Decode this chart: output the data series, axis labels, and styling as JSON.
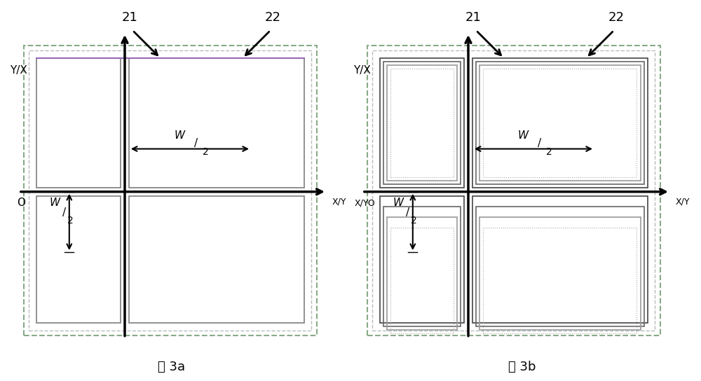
{
  "fig_width": 10.0,
  "fig_height": 5.44,
  "bg_color": "#ffffff",
  "outer_dash_color": "#88aa88",
  "mid_dash_color": "#aaaaaa",
  "mid_dash2_color": "#aaaaaa",
  "quad_color": "#888888",
  "purple_color": "#9966bb",
  "axis_lw": 2.5,
  "label_21": "21",
  "label_22": "22",
  "caption_a": "图 3a",
  "caption_b": "图 3b",
  "origin_a": "O",
  "origin_b": "X/YO",
  "y_label": "Y/X",
  "x_label_a": "X/Y",
  "x_label_b": "X/Y",
  "W_label": "W",
  "half_label": "2"
}
